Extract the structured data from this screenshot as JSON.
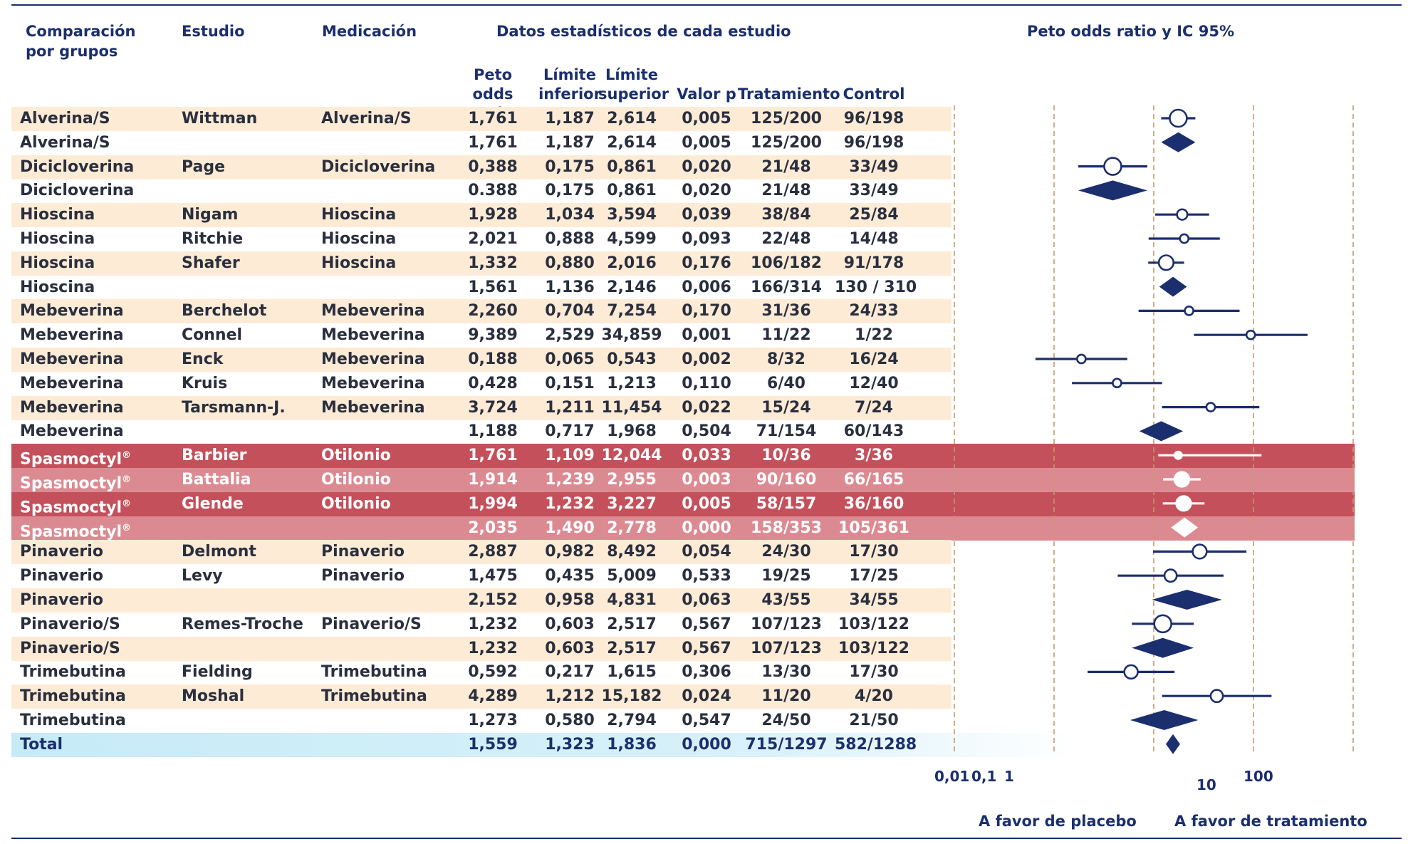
{
  "headers": {
    "group": "Comparación\npor grupos",
    "study": "Estudio",
    "medication": "Medicación",
    "stats": "Datos estadísticos de cada estudio",
    "plot": "Peto odds ratio y IC 95%"
  },
  "subheaders": {
    "peto": "Peto\nodds ratio",
    "lower": "Límite\ninferior",
    "upper": "Límite\nsuperior",
    "p": "Valor p",
    "treatment": "Tratamiento",
    "control": "Control"
  },
  "axis": {
    "labels": [
      "0,01",
      "0,1",
      "1",
      "10",
      "100"
    ],
    "favor_left": "A favor de placebo",
    "favor_right": "A favor de tratamiento"
  },
  "colors": {
    "navy": "#1b2f6e",
    "peach": "#fdebd6",
    "red": "#c4505b",
    "pink": "#dc8a92",
    "total": "#c6ebf7"
  },
  "chart_data": {
    "type": "forest",
    "title": "Peto odds ratio y IC 95%",
    "x_scale": "log",
    "xlim": [
      0.01,
      100
    ],
    "rows": [
      {
        "group": "Alverina/S",
        "study": "Wittman",
        "medication": "Alverina/S",
        "or": "1,761",
        "lower": "1,187",
        "upper": "2,614",
        "p": "0,005",
        "treatment": "125/200",
        "control": "96/198",
        "type": "study",
        "style": "alt",
        "or_v": 1.761,
        "lo_v": 1.187,
        "hi_v": 2.614,
        "weight": 1.0
      },
      {
        "group": "Alverina/S",
        "study": "",
        "medication": "",
        "or": "1,761",
        "lower": "1,187",
        "upper": "2,614",
        "p": "0,005",
        "treatment": "125/200",
        "control": "96/198",
        "type": "summary",
        "style": "plain",
        "or_v": 1.761,
        "lo_v": 1.187,
        "hi_v": 2.614
      },
      {
        "group": "Dicicloverina",
        "study": "Page",
        "medication": "Dicicloverina",
        "or": "0,388",
        "lower": "0,175",
        "upper": "0,861",
        "p": "0,020",
        "treatment": "21/48",
        "control": "33/49",
        "type": "study",
        "style": "alt",
        "or_v": 0.388,
        "lo_v": 0.175,
        "hi_v": 0.861,
        "weight": 1.0
      },
      {
        "group": "Dicicloverina",
        "study": "",
        "medication": "",
        "or": "0.388",
        "lower": "0,175",
        "upper": "0,861",
        "p": "0,020",
        "treatment": "21/48",
        "control": "33/49",
        "type": "summary",
        "style": "plain",
        "or_v": 0.388,
        "lo_v": 0.175,
        "hi_v": 0.861
      },
      {
        "group": "Hioscina",
        "study": "Nigam",
        "medication": "Hioscina",
        "or": "1,928",
        "lower": "1,034",
        "upper": "3,594",
        "p": "0,039",
        "treatment": "38/84",
        "control": "25/84",
        "type": "study",
        "style": "alt",
        "or_v": 1.928,
        "lo_v": 1.034,
        "hi_v": 3.594,
        "weight": 0.45
      },
      {
        "group": "Hioscina",
        "study": "Ritchie",
        "medication": "Hioscina",
        "or": "2,021",
        "lower": "0,888",
        "upper": "4,599",
        "p": "0,093",
        "treatment": "22/48",
        "control": "14/48",
        "type": "study",
        "style": "plain",
        "or_v": 2.021,
        "lo_v": 0.888,
        "hi_v": 4.599,
        "weight": 0.3
      },
      {
        "group": "Hioscina",
        "study": "Shafer",
        "medication": "Hioscina",
        "or": "1,332",
        "lower": "0,880",
        "upper": "2,016",
        "p": "0,176",
        "treatment": "106/182",
        "control": "91/178",
        "type": "study",
        "style": "alt",
        "or_v": 1.332,
        "lo_v": 0.88,
        "hi_v": 2.016,
        "weight": 0.8
      },
      {
        "group": "Hioscina",
        "study": "",
        "medication": "",
        "or": "1,561",
        "lower": "1,136",
        "upper": "2,146",
        "p": "0,006",
        "treatment": "166/314",
        "control": "130 / 310",
        "type": "summary",
        "style": "plain",
        "or_v": 1.561,
        "lo_v": 1.136,
        "hi_v": 2.146
      },
      {
        "group": "Mebeverina",
        "study": "Berchelot",
        "medication": "Mebeverina",
        "or": "2,260",
        "lower": "0,704",
        "upper": "7,254",
        "p": "0,170",
        "treatment": "31/36",
        "control": "24/33",
        "type": "study",
        "style": "alt",
        "or_v": 2.26,
        "lo_v": 0.704,
        "hi_v": 7.254,
        "weight": 0.3
      },
      {
        "group": "Mebeverina",
        "study": "Connel",
        "medication": "Mebeverina",
        "or": "9,389",
        "lower": "2,529",
        "upper": "34,859",
        "p": "0,001",
        "treatment": "11/22",
        "control": "1/22",
        "type": "study",
        "style": "plain",
        "or_v": 9.389,
        "lo_v": 2.529,
        "hi_v": 34.859,
        "weight": 0.3
      },
      {
        "group": "Mebeverina",
        "study": "Enck",
        "medication": "Mebeverina",
        "or": "0,188",
        "lower": "0,065",
        "upper": "0,543",
        "p": "0,002",
        "treatment": "8/32",
        "control": "16/24",
        "type": "study",
        "style": "alt",
        "or_v": 0.188,
        "lo_v": 0.065,
        "hi_v": 0.543,
        "weight": 0.3
      },
      {
        "group": "Mebeverina",
        "study": "Kruis",
        "medication": "Mebeverina",
        "or": "0,428",
        "lower": "0,151",
        "upper": "1,213",
        "p": "0,110",
        "treatment": "6/40",
        "control": "12/40",
        "type": "study",
        "style": "plain",
        "or_v": 0.428,
        "lo_v": 0.151,
        "hi_v": 1.213,
        "weight": 0.3
      },
      {
        "group": "Mebeverina",
        "study": "Tarsmann-J.",
        "medication": "Mebeverina",
        "or": "3,724",
        "lower": "1,211",
        "upper": "11,454",
        "p": "0,022",
        "treatment": "15/24",
        "control": "7/24",
        "type": "study",
        "style": "alt",
        "or_v": 3.724,
        "lo_v": 1.211,
        "hi_v": 11.454,
        "weight": 0.3
      },
      {
        "group": "Mebeverina",
        "study": "",
        "medication": "",
        "or": "1,188",
        "lower": "0,717",
        "upper": "1,968",
        "p": "0,504",
        "treatment": "71/154",
        "control": "60/143",
        "type": "summary",
        "style": "plain",
        "or_v": 1.188,
        "lo_v": 0.717,
        "hi_v": 1.968
      },
      {
        "group": "Spasmoctyl®",
        "study": "Barbier",
        "medication": "Otilonio",
        "or": "1,761",
        "lower": "1,109",
        "upper": "12,044",
        "p": "0,033",
        "treatment": "10/36",
        "control": "3/36",
        "type": "study",
        "style": "red",
        "or_v": 1.761,
        "lo_v": 1.109,
        "hi_v": 12.044,
        "weight": 0.2
      },
      {
        "group": "Spasmoctyl®",
        "study": "Battalia",
        "medication": "Otilonio",
        "or": "1,914",
        "lower": "1,239",
        "upper": "2,955",
        "p": "0,003",
        "treatment": "90/160",
        "control": "66/165",
        "type": "study",
        "style": "pink",
        "or_v": 1.914,
        "lo_v": 1.239,
        "hi_v": 2.955,
        "weight": 0.8
      },
      {
        "group": "Spasmoctyl®",
        "study": "Glende",
        "medication": "Otilonio",
        "or": "1,994",
        "lower": "1,232",
        "upper": "3,227",
        "p": "0,005",
        "treatment": "58/157",
        "control": "36/160",
        "type": "study",
        "style": "red",
        "or_v": 1.994,
        "lo_v": 1.232,
        "hi_v": 3.227,
        "weight": 0.8
      },
      {
        "group": "Spasmoctyl®",
        "study": "",
        "medication": "",
        "or": "2,035",
        "lower": "1,490",
        "upper": "2,778",
        "p": "0,000",
        "treatment": "158/353",
        "control": "105/361",
        "type": "summary",
        "style": "pink",
        "or_v": 2.035,
        "lo_v": 1.49,
        "hi_v": 2.778
      },
      {
        "group": "Pinaverio",
        "study": "Delmont",
        "medication": "Pinaverio",
        "or": "2,887",
        "lower": "0,982",
        "upper": "8,492",
        "p": "0,054",
        "treatment": "24/30",
        "control": "17/30",
        "type": "study",
        "style": "alt",
        "or_v": 2.887,
        "lo_v": 0.982,
        "hi_v": 8.492,
        "weight": 0.75
      },
      {
        "group": "Pinaverio",
        "study": "Levy",
        "medication": "Pinaverio",
        "or": "1,475",
        "lower": "0,435",
        "upper": "5,009",
        "p": "0,533",
        "treatment": "19/25",
        "control": "17/25",
        "type": "study",
        "style": "plain",
        "or_v": 1.475,
        "lo_v": 0.435,
        "hi_v": 5.009,
        "weight": 0.6
      },
      {
        "group": "Pinaverio",
        "study": "",
        "medication": "",
        "or": "2,152",
        "lower": "0,958",
        "upper": "4,831",
        "p": "0,063",
        "treatment": "43/55",
        "control": "34/55",
        "type": "summary",
        "style": "alt",
        "or_v": 2.152,
        "lo_v": 0.958,
        "hi_v": 4.831
      },
      {
        "group": "Pinaverio/S",
        "study": "Remes-Troche",
        "medication": "Pinaverio/S",
        "or": "1,232",
        "lower": "0,603",
        "upper": "2,517",
        "p": "0,567",
        "treatment": "107/123",
        "control": "103/122",
        "type": "study",
        "style": "plain",
        "or_v": 1.232,
        "lo_v": 0.603,
        "hi_v": 2.517,
        "weight": 1.0
      },
      {
        "group": "Pinaverio/S",
        "study": "",
        "medication": "",
        "or": "1,232",
        "lower": "0,603",
        "upper": "2,517",
        "p": "0,567",
        "treatment": "107/123",
        "control": "103/122",
        "type": "summary",
        "style": "alt",
        "or_v": 1.232,
        "lo_v": 0.603,
        "hi_v": 2.517
      },
      {
        "group": "Trimebutina",
        "study": "Fielding",
        "medication": "Trimebutina",
        "or": "0,592",
        "lower": "0,217",
        "upper": "1,615",
        "p": "0,306",
        "treatment": "13/30",
        "control": "17/30",
        "type": "study",
        "style": "plain",
        "or_v": 0.592,
        "lo_v": 0.217,
        "hi_v": 1.615,
        "weight": 0.7
      },
      {
        "group": "Trimebutina",
        "study": "Moshal",
        "medication": "Trimebutina",
        "or": "4,289",
        "lower": "1,212",
        "upper": "15,182",
        "p": "0,024",
        "treatment": "11/20",
        "control": "4/20",
        "type": "study",
        "style": "alt",
        "or_v": 4.289,
        "lo_v": 1.212,
        "hi_v": 15.182,
        "weight": 0.6
      },
      {
        "group": "Trimebutina",
        "study": "",
        "medication": "",
        "or": "1,273",
        "lower": "0,580",
        "upper": "2,794",
        "p": "0,547",
        "treatment": "24/50",
        "control": "21/50",
        "type": "summary",
        "style": "plain",
        "or_v": 1.273,
        "lo_v": 0.58,
        "hi_v": 2.794
      },
      {
        "group": "Total",
        "study": "",
        "medication": "",
        "or": "1,559",
        "lower": "1,323",
        "upper": "1,836",
        "p": "0,000",
        "treatment": "715/1297",
        "control": "582/1288",
        "type": "total",
        "style": "total",
        "or_v": 1.559,
        "lo_v": 1.323,
        "hi_v": 1.836
      }
    ]
  }
}
